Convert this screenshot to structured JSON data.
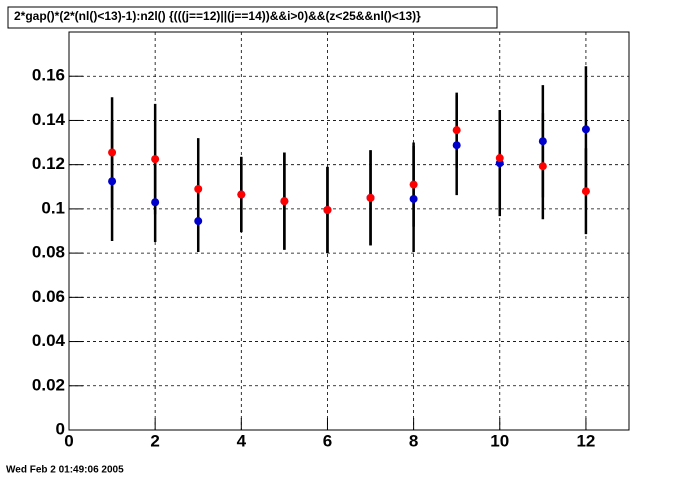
{
  "chart_data": {
    "type": "scatter",
    "title": "2*gap()*(2*(nl()<13)-1):n2l() {(((j==12)||(j==14))&&i>0)&&(z<25&&nl()<13)}",
    "footer": "Wed Feb  2 01:49:06 2005",
    "x": [
      1,
      2,
      3,
      4,
      5,
      6,
      7,
      8,
      9,
      10,
      11,
      12
    ],
    "series": [
      {
        "color": "#0000cc",
        "values": [
          0.1125,
          0.103,
          0.0945,
          0.1065,
          0.1035,
          0.0995,
          0.105,
          0.1045,
          0.1288,
          0.1207,
          0.1306,
          0.136
        ],
        "errors": [
          0.027,
          0.018,
          0.014,
          0.017,
          0.022,
          0.0195,
          0.0215,
          0.024,
          0.0226,
          0.024,
          0.0254,
          0.0285
        ]
      },
      {
        "color": "#ff0000",
        "values": [
          0.1255,
          0.1225,
          0.109,
          0.1065,
          0.1035,
          0.0995,
          0.105,
          0.111,
          0.1356,
          0.123,
          0.1193,
          0.108
        ],
        "errors": [
          0.025,
          0.025,
          0.023,
          0.017,
          0.022,
          0.0195,
          0.0215,
          0.019,
          0.017,
          0.0216,
          0.024,
          0.0194
        ]
      }
    ],
    "xlim": [
      0,
      13
    ],
    "xticks": [
      0,
      2,
      4,
      6,
      8,
      10,
      12
    ],
    "ylim": [
      0,
      0.18
    ],
    "yticks": [
      0,
      0.02,
      0.04,
      0.06,
      0.08,
      0.1,
      0.12,
      0.14,
      0.16
    ],
    "grid": true
  }
}
